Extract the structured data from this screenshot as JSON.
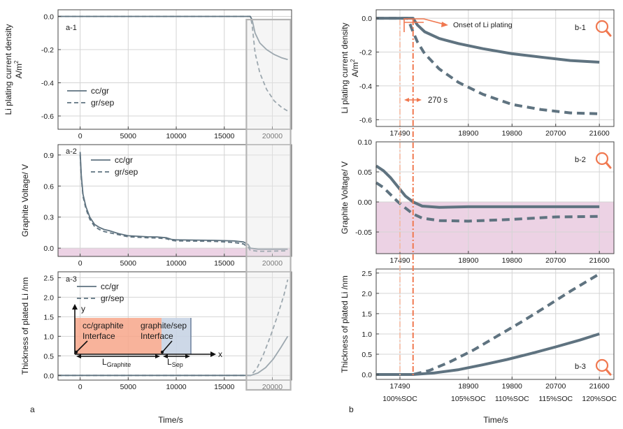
{
  "figure_labels": {
    "left": "a",
    "right": "b"
  },
  "xlabel": "Time/s",
  "colors": {
    "line": "#5f7380",
    "pink": "#ecd2e4",
    "highlight_fill": "#e8e8e8",
    "highlight_stroke": "#b5b5b5",
    "accent": "#f07850",
    "graphite_fill": "#f7a689",
    "sep_fill": "#c8d4e4"
  },
  "chart_data": [
    {
      "id": "a1",
      "type": "line",
      "tag": "a-1",
      "ylabel": "Li plating current density",
      "ylabel2": "A/m",
      "ylabel_sup": "2",
      "xlim": [
        -2300,
        22000
      ],
      "ylim": [
        -0.68,
        0.04
      ],
      "xticks": [
        0,
        5000,
        10000,
        15000,
        20000
      ],
      "xtick_labels": [
        "0",
        "5000",
        "10000",
        "15000",
        "20000"
      ],
      "yticks": [
        0.0,
        -0.2,
        -0.4,
        -0.6
      ],
      "ytick_labels": [
        "0.0",
        "-0.2",
        "-0.4",
        "-0.6"
      ],
      "legend": [
        "cc/gr",
        "gr/sep"
      ],
      "series": [
        {
          "name": "cc/gr",
          "style": "solid",
          "x": [
            -2300,
            17700,
            17900,
            18200,
            18700,
            19400,
            20200,
            21000,
            21600
          ],
          "y": [
            0,
            0,
            -0.02,
            -0.1,
            -0.16,
            -0.2,
            -0.23,
            -0.25,
            -0.26
          ]
        },
        {
          "name": "gr/sep",
          "style": "dashed",
          "x": [
            -2300,
            17700,
            17900,
            18200,
            18700,
            19400,
            20200,
            21000,
            21600
          ],
          "y": [
            0,
            0,
            -0.05,
            -0.22,
            -0.34,
            -0.44,
            -0.51,
            -0.55,
            -0.57
          ]
        }
      ]
    },
    {
      "id": "a2",
      "type": "line",
      "tag": "a-2",
      "ylabel": "Graphite Voltage/ V",
      "xlim": [
        -2300,
        22000
      ],
      "ylim": [
        -0.08,
        1.0
      ],
      "xticks": [
        0,
        5000,
        10000,
        15000,
        20000
      ],
      "xtick_labels": [
        "0",
        "5000",
        "10000",
        "15000",
        "20000"
      ],
      "yticks": [
        0.9,
        0.6,
        0.3,
        0.0
      ],
      "ytick_labels": [
        "0.9",
        "0.6",
        "0.3",
        "0.0"
      ],
      "legend": [
        "cc/gr",
        "gr/sep"
      ],
      "series": [
        {
          "name": "cc/gr",
          "style": "solid",
          "x": [
            0,
            120,
            300,
            600,
            1000,
            1500,
            2000,
            2500,
            3000,
            4000,
            5000,
            6000,
            7000,
            8000,
            9000,
            9500,
            10000,
            12000,
            14000,
            16000,
            17000,
            17490,
            17700,
            18500,
            19500,
            21600
          ],
          "y": [
            0.93,
            0.7,
            0.52,
            0.4,
            0.3,
            0.23,
            0.2,
            0.18,
            0.17,
            0.14,
            0.12,
            0.115,
            0.11,
            0.108,
            0.1,
            0.085,
            0.08,
            0.078,
            0.075,
            0.07,
            0.06,
            0.035,
            0.0,
            -0.01,
            -0.01,
            -0.01
          ]
        },
        {
          "name": "gr/sep",
          "style": "dashed",
          "x": [
            0,
            120,
            300,
            600,
            1000,
            1500,
            2000,
            2500,
            3000,
            4000,
            5000,
            6000,
            7000,
            8000,
            9000,
            9500,
            10000,
            12000,
            14000,
            16000,
            17000,
            17490,
            17700,
            18500,
            19500,
            21600
          ],
          "y": [
            0.9,
            0.68,
            0.5,
            0.38,
            0.28,
            0.21,
            0.18,
            0.16,
            0.15,
            0.13,
            0.11,
            0.105,
            0.1,
            0.098,
            0.09,
            0.075,
            0.07,
            0.068,
            0.065,
            0.055,
            0.04,
            0.01,
            -0.02,
            -0.03,
            -0.03,
            -0.025
          ]
        }
      ]
    },
    {
      "id": "a3",
      "type": "line",
      "tag": "a-3",
      "ylabel": "Thickness of plated Li /nm",
      "xlim": [
        -2300,
        22000
      ],
      "ylim": [
        -0.12,
        2.65
      ],
      "xticks": [
        0,
        5000,
        10000,
        15000,
        20000
      ],
      "xtick_labels": [
        "0",
        "5000",
        "10000",
        "15000",
        "20000"
      ],
      "yticks": [
        2.5,
        2.0,
        1.5,
        1.0,
        0.5,
        0.0
      ],
      "ytick_labels": [
        "2.5",
        "2.0",
        "1.5",
        "1.0",
        "0.5",
        "0.0"
      ],
      "legend": [
        "cc/gr",
        "gr/sep"
      ],
      "series": [
        {
          "name": "cc/gr",
          "style": "solid",
          "x": [
            -2300,
            17760,
            18500,
            19300,
            20100,
            20900,
            21600
          ],
          "y": [
            0,
            0,
            0.06,
            0.2,
            0.42,
            0.72,
            1.0
          ]
        },
        {
          "name": "gr/sep",
          "style": "dashed",
          "x": [
            -2300,
            17760,
            18400,
            19100,
            19800,
            20500,
            21200,
            21600
          ],
          "y": [
            0,
            0,
            0.18,
            0.55,
            1.0,
            1.5,
            2.05,
            2.45
          ]
        }
      ]
    },
    {
      "id": "b1",
      "type": "line",
      "tag": "b-1",
      "ylabel": "Li plating current density",
      "ylabel2": "A/m",
      "ylabel_sup": "2",
      "xlim": [
        17000,
        21900
      ],
      "ylim": [
        -0.64,
        0.05
      ],
      "xticks": [
        17490,
        18900,
        19800,
        20700,
        21600
      ],
      "xtick_labels": [
        "17490",
        "18900",
        "19800",
        "20700",
        "21600"
      ],
      "yticks": [
        0.0,
        -0.2,
        -0.4,
        -0.6
      ],
      "ytick_labels": [
        "0.0",
        "-0.2",
        "-0.4",
        "-0.6"
      ],
      "annotation": "Onset of Li plating",
      "interval_label": "270 s",
      "series": [
        {
          "name": "cc/gr",
          "style": "solid",
          "x": [
            17000,
            17760,
            17850,
            18000,
            18300,
            18700,
            19200,
            19800,
            20400,
            21000,
            21600
          ],
          "y": [
            0,
            0,
            -0.04,
            -0.08,
            -0.12,
            -0.15,
            -0.18,
            -0.21,
            -0.23,
            -0.25,
            -0.26
          ]
        },
        {
          "name": "gr/sep",
          "style": "dashed",
          "x": [
            17000,
            17650,
            17760,
            17850,
            18000,
            18300,
            18700,
            19200,
            19800,
            20400,
            21000,
            21600
          ],
          "y": [
            0,
            0,
            -0.08,
            -0.14,
            -0.21,
            -0.3,
            -0.38,
            -0.45,
            -0.51,
            -0.54,
            -0.56,
            -0.565
          ]
        }
      ]
    },
    {
      "id": "b2",
      "type": "line",
      "tag": "b-2",
      "ylabel": "Graphite Voltage/ V",
      "xlim": [
        17000,
        21900
      ],
      "ylim": [
        -0.086,
        0.1
      ],
      "xticks": [
        17490,
        18900,
        19800,
        20700,
        21600
      ],
      "xtick_labels": [
        "17490",
        "18900",
        "19800",
        "20700",
        "21600"
      ],
      "yticks": [
        0.1,
        0.05,
        0.0,
        -0.05
      ],
      "ytick_labels": [
        "0.10",
        "0.05",
        "0.00",
        "-0.05"
      ],
      "series": [
        {
          "name": "cc/gr",
          "style": "solid",
          "x": [
            17000,
            17150,
            17300,
            17450,
            17600,
            17760,
            17950,
            18300,
            18900,
            19800,
            20700,
            21600
          ],
          "y": [
            0.06,
            0.052,
            0.04,
            0.025,
            0.01,
            0.0,
            -0.007,
            -0.009,
            -0.008,
            -0.008,
            -0.008,
            -0.008
          ]
        },
        {
          "name": "gr/sep",
          "style": "dashed",
          "x": [
            17000,
            17150,
            17300,
            17450,
            17600,
            17760,
            17950,
            18300,
            18900,
            19800,
            20700,
            21600
          ],
          "y": [
            0.032,
            0.024,
            0.012,
            0.0,
            -0.01,
            -0.02,
            -0.027,
            -0.031,
            -0.032,
            -0.029,
            -0.025,
            -0.024
          ]
        }
      ]
    },
    {
      "id": "b3",
      "type": "line",
      "tag": "b-3",
      "ylabel": "Thickness of plated Li /nm",
      "xlim": [
        17000,
        21900
      ],
      "ylim": [
        -0.12,
        2.6
      ],
      "xticks": [
        17490,
        18900,
        19800,
        20700,
        21600
      ],
      "xtick_labels": [
        "17490",
        "18900",
        "19800",
        "20700",
        "21600"
      ],
      "xtick_labels2": [
        "100%SOC",
        "105%SOC",
        "110%SOC",
        "115%SOC",
        "120%SOC"
      ],
      "yticks": [
        2.5,
        2.0,
        1.5,
        1.0,
        0.5,
        0.0
      ],
      "ytick_labels": [
        "2.5",
        "2.0",
        "1.5",
        "1.0",
        "0.5",
        "0.0"
      ],
      "series": [
        {
          "name": "cc/gr",
          "style": "solid",
          "x": [
            17000,
            17760,
            18200,
            18700,
            19200,
            19700,
            20200,
            20700,
            21200,
            21600
          ],
          "y": [
            0,
            0,
            0.04,
            0.12,
            0.24,
            0.37,
            0.52,
            0.68,
            0.85,
            1.0
          ]
        },
        {
          "name": "gr/sep",
          "style": "dashed",
          "x": [
            17000,
            17760,
            18100,
            18500,
            19000,
            19500,
            20000,
            20500,
            21000,
            21600
          ],
          "y": [
            0,
            0,
            0.1,
            0.3,
            0.6,
            0.95,
            1.3,
            1.67,
            2.05,
            2.48
          ]
        }
      ]
    }
  ],
  "schematic": {
    "axis_y": "y",
    "axis_x": "x",
    "region1_line1": "cc/graphite",
    "region1_line2": "Interface",
    "region2_line1": "graphite/sep",
    "region2_line2": "Interface",
    "L_graphite": "L",
    "L_graphite_sub": "Graphite",
    "L_sep": "L",
    "L_sep_sub": "Sep"
  },
  "markers": {
    "t_start": 17490,
    "t_onset": 17760
  }
}
